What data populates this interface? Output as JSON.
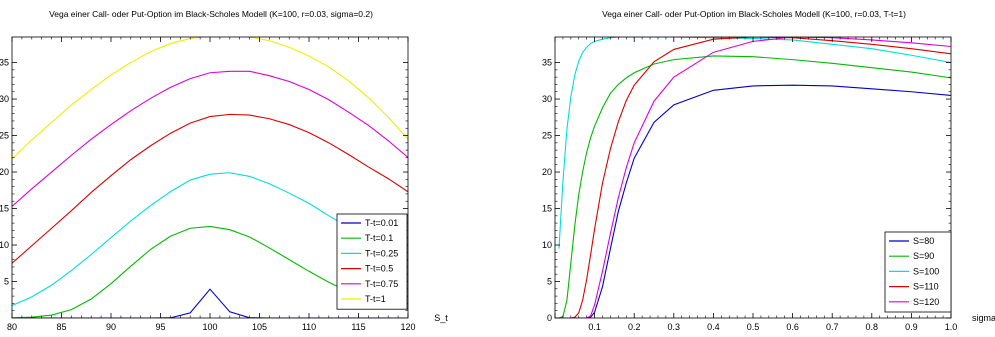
{
  "chart_data": [
    {
      "type": "line",
      "title": "Vega einer Call- oder Put-Option im Black-Scholes Modell (K=100, r=0.03, sigma=0.2)",
      "xlabel": "S_t",
      "ylabel": "",
      "xlim": [
        80,
        120
      ],
      "ylim": [
        0,
        38.5
      ],
      "x_ticks": [
        80,
        85,
        90,
        95,
        100,
        105,
        110,
        115,
        120
      ],
      "y_ticks": [
        5,
        10,
        15,
        20,
        25,
        30,
        35
      ],
      "y_tick_labels": [
        "5",
        "10",
        "15",
        "20",
        "25",
        "30",
        "35"
      ],
      "grid": false,
      "legend_position": "bottom-right",
      "x": [
        80,
        82,
        84,
        86,
        88,
        90,
        92,
        94,
        96,
        98,
        100,
        102,
        104,
        106,
        108,
        110,
        112,
        114,
        116,
        118,
        120
      ],
      "series": [
        {
          "name": "T-t=0.01",
          "color": "#0000cc",
          "values": [
            0,
            0,
            0,
            0,
            0,
            0,
            0,
            0,
            0.02,
            0.7,
            3.95,
            0.85,
            0.03,
            0,
            0,
            0,
            0,
            0,
            0,
            0,
            0
          ]
        },
        {
          "name": "T-t=0.1",
          "color": "#00bb00",
          "values": [
            0.02,
            0.11,
            0.4,
            1.15,
            2.6,
            4.7,
            7.1,
            9.4,
            11.2,
            12.3,
            12.55,
            12.1,
            11.1,
            9.6,
            8.0,
            6.4,
            4.9,
            3.6,
            2.6,
            1.8,
            1.2
          ]
        },
        {
          "name": "T-t=0.25",
          "color": "#00dddd",
          "values": [
            1.7,
            2.9,
            4.5,
            6.5,
            8.7,
            11.0,
            13.3,
            15.4,
            17.3,
            18.9,
            19.7,
            19.9,
            19.4,
            18.4,
            17.1,
            15.7,
            14.0,
            12.4,
            10.8,
            9.3,
            7.9
          ]
        },
        {
          "name": "T-t=0.5",
          "color": "#dd0000",
          "values": [
            7.5,
            9.9,
            12.3,
            14.7,
            17.2,
            19.5,
            21.7,
            23.6,
            25.3,
            26.7,
            27.6,
            27.9,
            27.8,
            27.3,
            26.5,
            25.4,
            24.0,
            22.4,
            20.7,
            19.1,
            17.3
          ]
        },
        {
          "name": "T-t=0.75",
          "color": "#dd00dd",
          "values": [
            15.3,
            17.7,
            20.0,
            22.3,
            24.5,
            26.5,
            28.4,
            30.1,
            31.6,
            32.8,
            33.6,
            33.8,
            33.8,
            33.2,
            32.4,
            31.3,
            29.9,
            28.2,
            26.4,
            24.3,
            22.0
          ]
        },
        {
          "name": "T-t=1",
          "color": "#eeee00",
          "values": [
            21.8,
            24.4,
            26.8,
            29.2,
            31.3,
            33.3,
            35.0,
            36.5,
            37.6,
            38.3,
            38.6,
            38.6,
            38.5,
            38.0,
            37.1,
            35.9,
            34.4,
            32.5,
            30.2,
            27.5,
            24.5
          ]
        }
      ]
    },
    {
      "type": "line",
      "title": "Vega einer Call- oder Put-Option im Black-Scholes Modell (K=100, r=0.03, T-t=1)",
      "xlabel": "sigma",
      "ylabel": "",
      "xlim": [
        0,
        1.0
      ],
      "ylim": [
        0,
        38.5
      ],
      "x_ticks": [
        0,
        0.1,
        0.2,
        0.3,
        0.4,
        0.5,
        0.6,
        0.7,
        0.8,
        0.9,
        1.0
      ],
      "x_tick_labels": [
        "0",
        "0.1",
        "0.2",
        "0.3",
        "0.4",
        "0.5",
        "0.6",
        "0.7",
        "0.8",
        "0.9",
        "1.0"
      ],
      "y_ticks": [
        0,
        5,
        10,
        15,
        20,
        25,
        30,
        35
      ],
      "y_tick_labels": [
        "0",
        "5",
        "10",
        "15",
        "20",
        "25",
        "30",
        "35"
      ],
      "grid": false,
      "legend_position": "bottom-right",
      "x": [
        0.01,
        0.02,
        0.03,
        0.04,
        0.05,
        0.06,
        0.07,
        0.08,
        0.09,
        0.1,
        0.12,
        0.14,
        0.16,
        0.18,
        0.2,
        0.25,
        0.3,
        0.4,
        0.5,
        0.6,
        0.7,
        0.8,
        0.9,
        1.0
      ],
      "series": [
        {
          "name": "S=80",
          "color": "#0000cc",
          "values": [
            0,
            0,
            0,
            0,
            0,
            0,
            0,
            0,
            0.1,
            0.8,
            4.3,
            9.5,
            14.6,
            18.5,
            21.9,
            26.8,
            29.2,
            31.2,
            31.8,
            31.9,
            31.8,
            31.4,
            31.0,
            30.5
          ]
        },
        {
          "name": "S=90",
          "color": "#00bb00",
          "values": [
            0,
            0.2,
            2.4,
            7.5,
            12.7,
            16.9,
            20.1,
            22.7,
            24.7,
            26.3,
            28.8,
            30.8,
            32.0,
            32.9,
            33.6,
            34.8,
            35.4,
            35.9,
            35.8,
            35.4,
            34.9,
            34.3,
            33.7,
            32.9
          ]
        },
        {
          "name": "S=100",
          "color": "#00dddd",
          "values": [
            9.5,
            18.7,
            25.8,
            30.3,
            33.3,
            35.2,
            36.4,
            37.1,
            37.6,
            37.9,
            38.2,
            38.4,
            38.5,
            38.5,
            38.5,
            38.5,
            38.5,
            38.4,
            38.3,
            38.1,
            37.5,
            36.9,
            36.0,
            35.0
          ]
        },
        {
          "name": "S=110",
          "color": "#dd0000",
          "values": [
            0,
            0,
            0,
            0,
            0.1,
            0.7,
            2.5,
            5.3,
            8.7,
            12.2,
            18.5,
            23.2,
            26.9,
            29.8,
            31.9,
            35.1,
            36.8,
            38.2,
            38.5,
            38.4,
            38.0,
            37.5,
            36.9,
            36.2
          ]
        },
        {
          "name": "S=120",
          "color": "#dd00dd",
          "values": [
            0,
            0,
            0,
            0,
            0,
            0,
            0,
            0,
            0.3,
            1.8,
            6.4,
            11.6,
            16.5,
            20.6,
            24.0,
            29.7,
            33.0,
            36.4,
            37.9,
            38.5,
            38.4,
            38.1,
            37.7,
            37.2
          ]
        }
      ]
    }
  ]
}
